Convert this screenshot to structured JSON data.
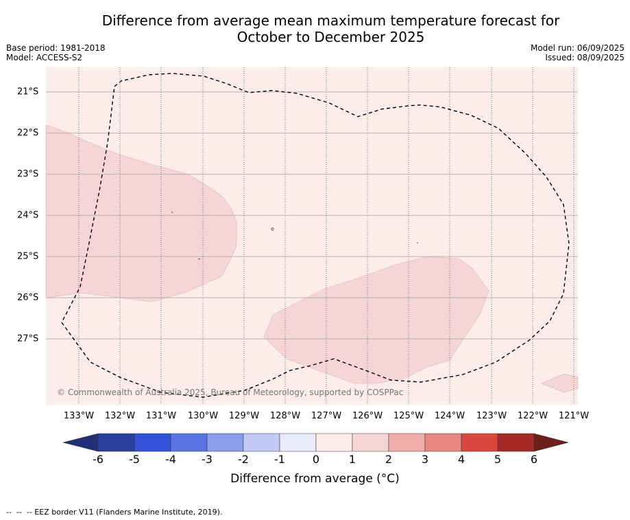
{
  "title_line1": "Difference from average mean maximum temperature forecast for",
  "title_line2": "October to December 2025",
  "base_period": "Base period: 1981-2018",
  "model": "Model: ACCESS-S2",
  "model_run": "Model run: 06/09/2025",
  "issued": "Issued: 08/09/2025",
  "copyright": "© Commonwealth of Australia 2025, Bureau of Meteorology, supported by COSPPac",
  "lat_labels": [
    "21°S",
    "22°S",
    "23°S",
    "24°S",
    "25°S",
    "26°S",
    "27°S"
  ],
  "lon_labels": [
    "133°W",
    "132°W",
    "131°W",
    "130°W",
    "129°W",
    "128°W",
    "127°W",
    "126°W",
    "125°W",
    "124°W",
    "123°W",
    "122°W",
    "121°W"
  ],
  "colorbar": {
    "label": "Difference from average (°C)",
    "ticks": [
      "-6",
      "-5",
      "-4",
      "-3",
      "-2",
      "-1",
      "0",
      "1",
      "2",
      "3",
      "4",
      "5",
      "6"
    ],
    "colors": [
      "#2a3e9e",
      "#3352d9",
      "#5a74e4",
      "#8a9ded",
      "#c3c9f5",
      "#e8eafa",
      "#fcecea",
      "#f6d6d5",
      "#efaea9",
      "#e8867f",
      "#d9473e",
      "#a62b26"
    ],
    "under_color": "#1f2f78",
    "over_color": "#6e1e1b"
  },
  "map_colors": {
    "background": "#fcecea",
    "anomaly_1_2": "#f6d6d5"
  },
  "footnote": "--  --  -- EEZ border V11 (Flanders Marine Institute, 2019)."
}
